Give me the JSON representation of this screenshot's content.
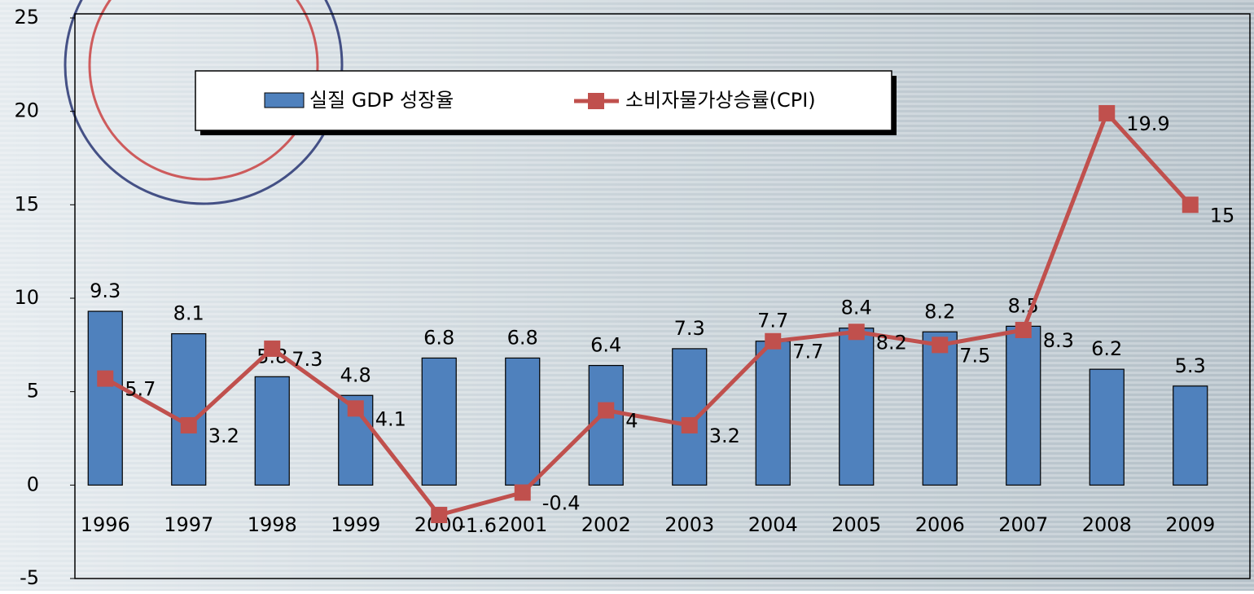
{
  "chart_data": {
    "type": "bar",
    "categories": [
      "1996",
      "1997",
      "1998",
      "1999",
      "2000",
      "2001",
      "2002",
      "2003",
      "2004",
      "2005",
      "2006",
      "2007",
      "2008",
      "2009"
    ],
    "series": [
      {
        "name": "실질 GDP 성장율",
        "type": "bar",
        "color": "#4f81bd",
        "values": [
          9.3,
          8.1,
          5.8,
          4.8,
          6.8,
          6.8,
          6.4,
          7.3,
          7.7,
          8.4,
          8.2,
          8.5,
          6.2,
          5.3
        ]
      },
      {
        "name": "소비자물가상승률(CPI)",
        "type": "line",
        "color": "#c0504d",
        "values": [
          5.7,
          3.2,
          7.3,
          4.1,
          -1.6,
          -0.4,
          4,
          3.2,
          7.7,
          8.2,
          7.5,
          8.3,
          19.9,
          15
        ]
      }
    ],
    "ylim": [
      -5,
      25
    ],
    "yticks": [
      -5,
      0,
      5,
      10,
      15,
      20,
      25
    ],
    "legend": "top"
  }
}
